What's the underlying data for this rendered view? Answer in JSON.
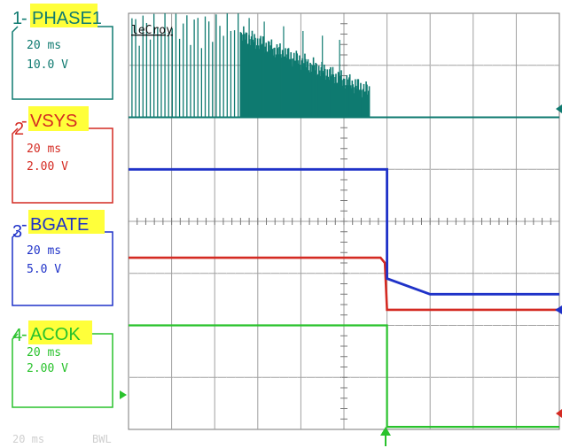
{
  "scope": {
    "brand": "leCroy",
    "footer": {
      "timebase": "20 ms",
      "bwl": "BWL"
    },
    "colors": {
      "ch1": "#0f7a70",
      "ch2": "#d42a22",
      "ch3": "#1f32c8",
      "ch4": "#29c22c",
      "label_highlight": "#ffff3a",
      "grid": "#7a7a7a"
    },
    "channels": [
      {
        "num": "1",
        "label": "PHASE1",
        "timebase": "20 ms",
        "scale": "10.0 V"
      },
      {
        "num": "2",
        "label": "VSYS",
        "timebase": "20 ms",
        "scale": "2.00 V"
      },
      {
        "num": "3",
        "label": "BGATE",
        "timebase": "20 ms",
        "scale": "5.0 V"
      },
      {
        "num": "4",
        "label": "ACOK",
        "timebase": "20 ms",
        "scale": "2.00 V"
      }
    ]
  },
  "chart_data": {
    "type": "line",
    "grid": {
      "divisions_x": 10,
      "divisions_y": 8,
      "visible": true
    },
    "trigger_time_div": 6.0,
    "series": [
      {
        "name": "PHASE1",
        "kind": "switching",
        "baseline_div": 6.0,
        "bursts": [
          {
            "t_start_div": 0.0,
            "t_end_div": 2.6,
            "style": "sparse",
            "peak_div": 2.0
          },
          {
            "t_start_div": 2.6,
            "t_end_div": 5.6,
            "style": "dense",
            "peak_div_start": 1.6,
            "peak_div_end": 0.5
          }
        ]
      },
      {
        "name": "VSYS",
        "points": [
          [
            0.0,
            3.3
          ],
          [
            5.85,
            3.3
          ],
          [
            5.95,
            3.2
          ],
          [
            6.0,
            2.3
          ],
          [
            10.0,
            2.3
          ]
        ]
      },
      {
        "name": "BGATE",
        "points": [
          [
            0.0,
            5.0
          ],
          [
            6.0,
            5.0
          ],
          [
            6.0,
            2.9
          ],
          [
            7.0,
            2.6
          ],
          [
            7.0,
            2.6
          ],
          [
            10.0,
            2.6
          ]
        ]
      },
      {
        "name": "ACOK",
        "points": [
          [
            0.0,
            2.0
          ],
          [
            6.0,
            2.0
          ],
          [
            6.0,
            0.05
          ],
          [
            10.0,
            0.05
          ]
        ]
      }
    ]
  }
}
